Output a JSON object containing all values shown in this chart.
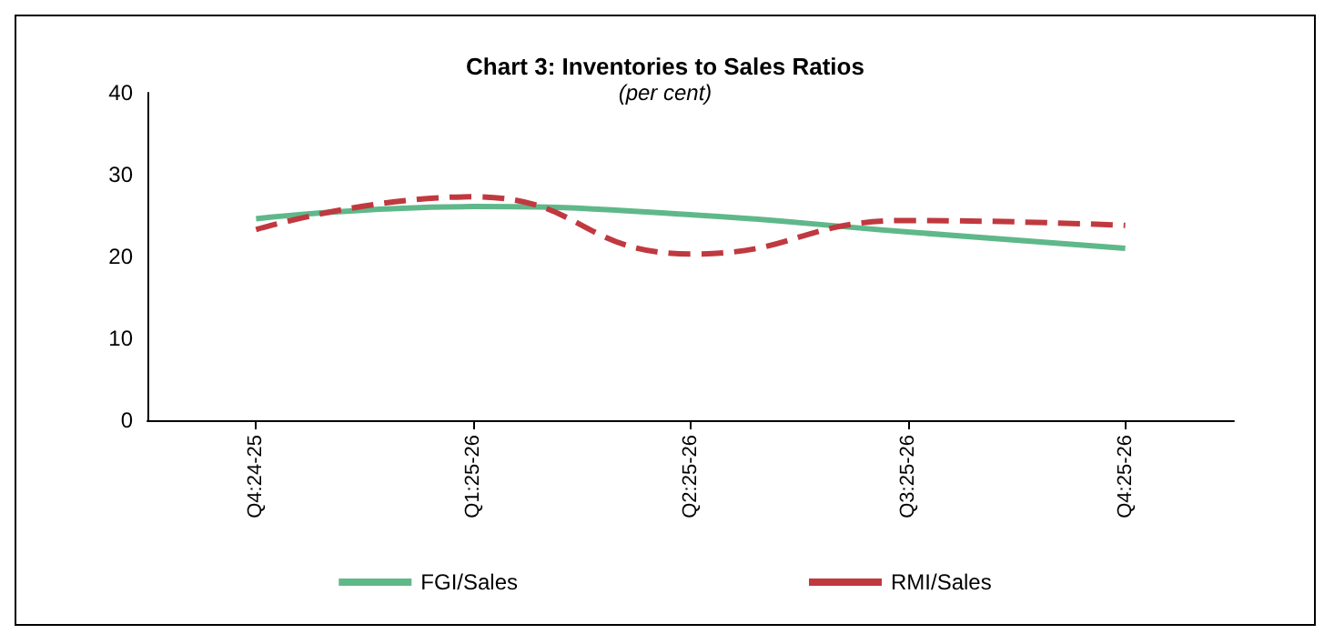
{
  "chart_data": {
    "type": "line",
    "title": "Chart 3: Inventories to Sales Ratios",
    "subtitle": "(per cent)",
    "categories": [
      "Q4:24-25",
      "Q1:25-26",
      "Q2:25-26",
      "Q3:25-26",
      "Q4:25-26"
    ],
    "series": [
      {
        "name": "FGI/Sales",
        "color": "#5fb88a",
        "values": [
          24.6,
          26.1,
          25.1,
          23.0,
          21.0
        ],
        "line_style": "solid"
      },
      {
        "name": "RMI/Sales",
        "color": "#c0393f",
        "values": [
          23.3,
          27.3,
          20.3,
          24.4,
          23.8
        ],
        "line_style": "dashed"
      }
    ],
    "ylim": [
      0,
      40
    ],
    "yticks": [
      0,
      10,
      20,
      30,
      40
    ],
    "grid": false,
    "legend": "bottom",
    "marker": "none"
  }
}
